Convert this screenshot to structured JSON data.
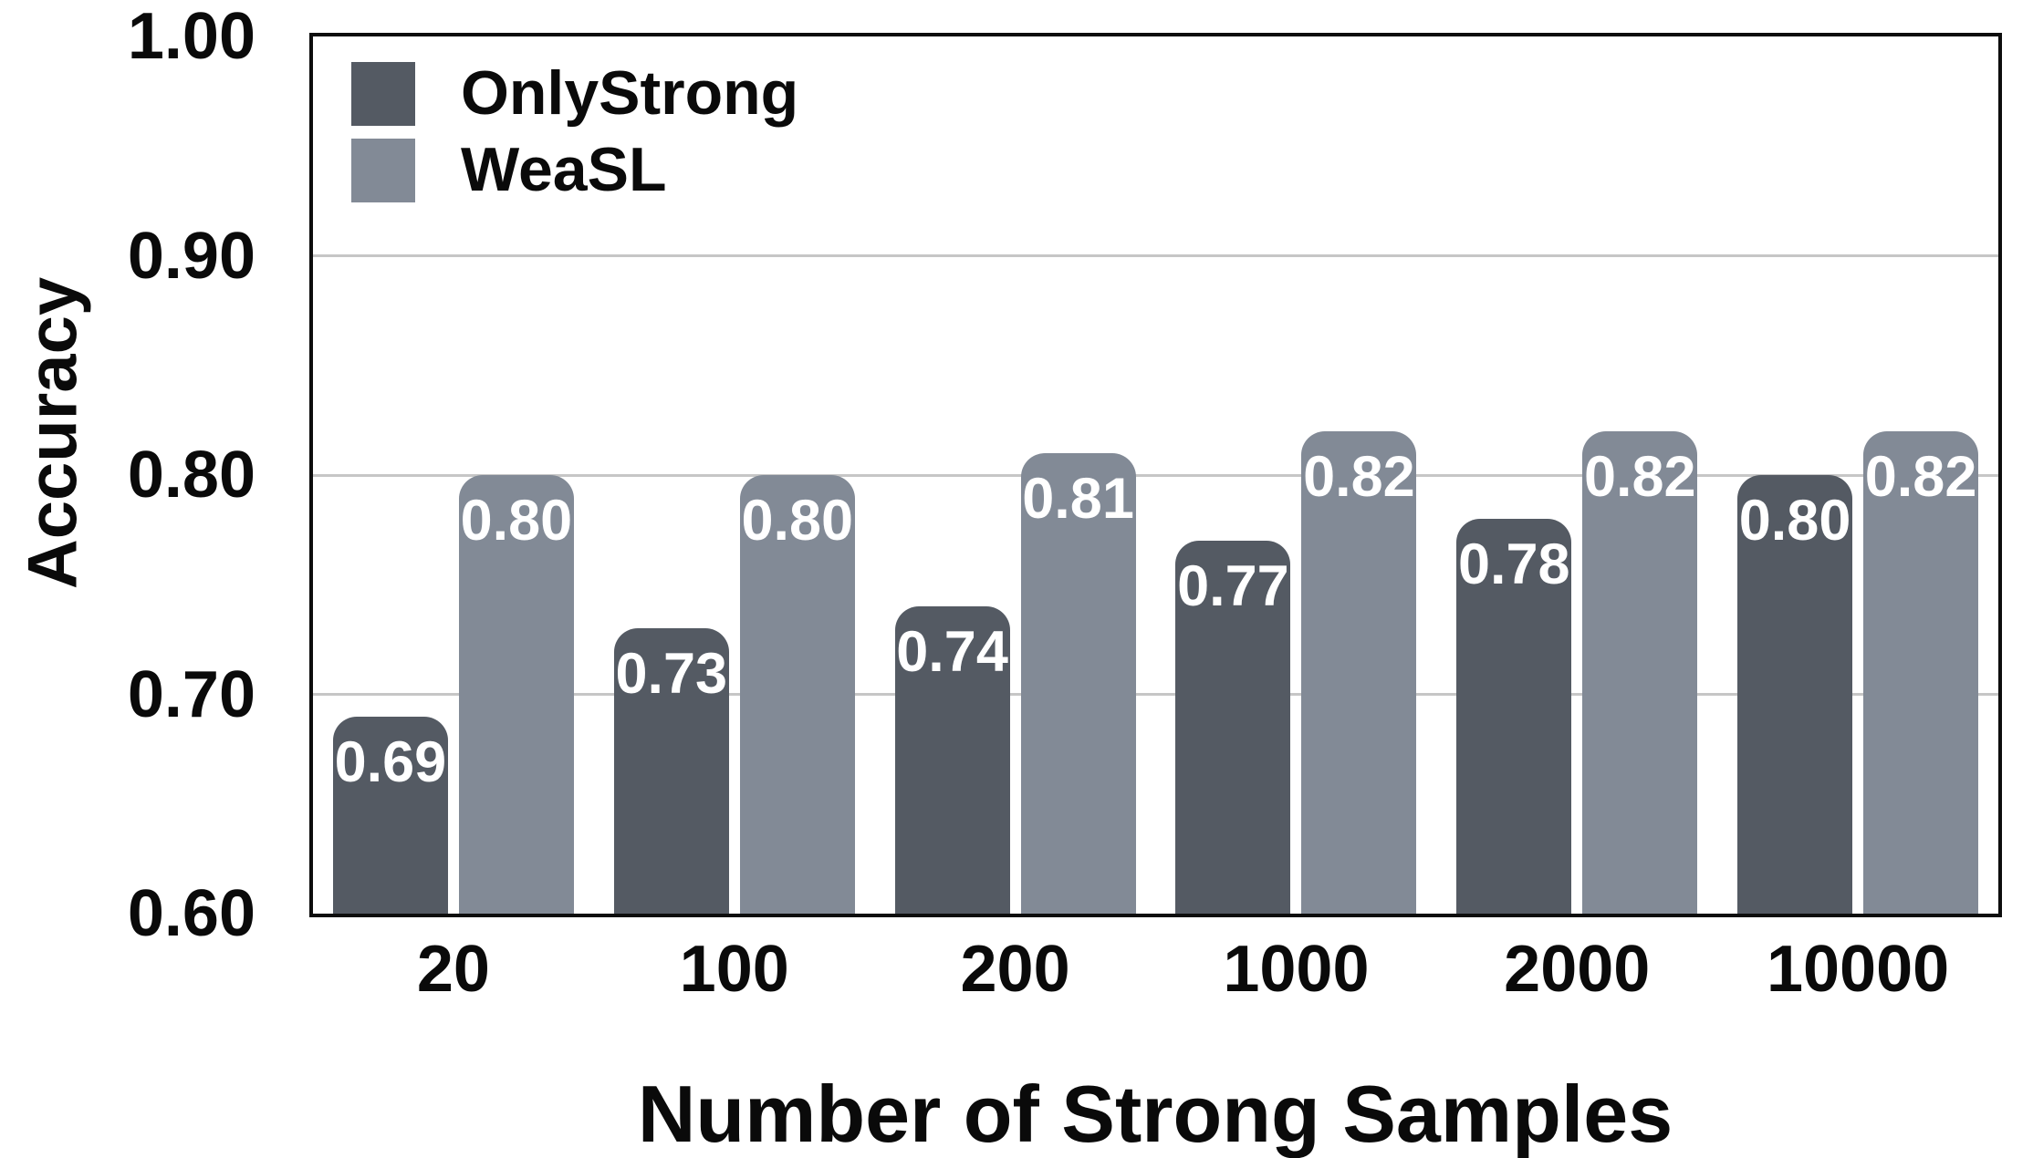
{
  "chart_data": {
    "type": "bar",
    "title": "",
    "xlabel": "Number of Strong Samples",
    "ylabel": "Accuracy",
    "categories": [
      "20",
      "100",
      "200",
      "1000",
      "2000",
      "10000"
    ],
    "series": [
      {
        "name": "OnlyStrong",
        "color": "#545a63",
        "values": [
          0.69,
          0.73,
          0.74,
          0.77,
          0.78,
          0.8
        ]
      },
      {
        "name": "WeaSL",
        "color": "#828a96",
        "values": [
          0.8,
          0.8,
          0.81,
          0.82,
          0.82,
          0.82
        ]
      }
    ],
    "bar_value_labels": [
      [
        "0.69",
        "0.73",
        "0.74",
        "0.77",
        "0.78",
        "0.80"
      ],
      [
        "0.80",
        "0.80",
        "0.81",
        "0.82",
        "0.82",
        "0.82"
      ]
    ],
    "ylim": [
      0.6,
      1.0
    ],
    "yticks": [
      0.6,
      0.7,
      0.8,
      0.9,
      1.0
    ],
    "ytick_labels": [
      "0.60",
      "0.70",
      "0.80",
      "0.90",
      "1.00"
    ],
    "gridlines_at": [
      0.7,
      0.8,
      0.9
    ],
    "grid": "horizontal",
    "legend_position": "upper left",
    "legend_entries": [
      "OnlyStrong",
      "WeaSL"
    ],
    "colors": {
      "bar_dark": "#545a63",
      "bar_light": "#828a96",
      "gridline": "#c6c6c6",
      "axis_border": "#0d0d0d",
      "text": "#0a0a0a",
      "bar_label_text": "#ffffff"
    }
  }
}
